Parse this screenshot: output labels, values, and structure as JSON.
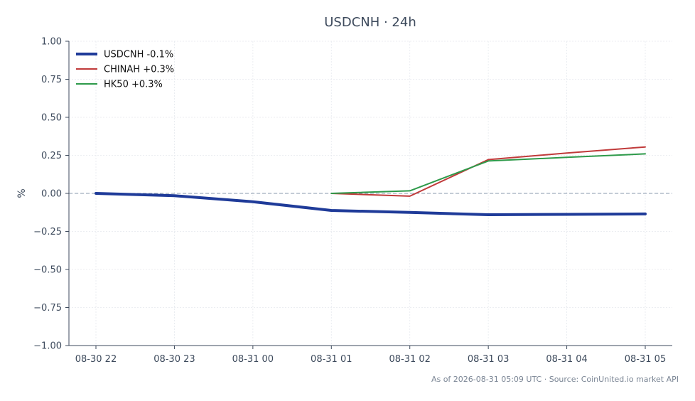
{
  "chart_data": {
    "type": "line",
    "title": "USDCNH · 24h",
    "ylabel": "%",
    "xlabel": "",
    "ylim": [
      -1.0,
      1.0
    ],
    "yticks": [
      1.0,
      0.75,
      0.5,
      0.25,
      0.0,
      -0.25,
      -0.5,
      -0.75,
      -1.0
    ],
    "ytick_labels": [
      "1.00",
      "0.75",
      "0.50",
      "0.25",
      "0.00",
      "−0.25",
      "−0.50",
      "−0.75",
      "−1.00"
    ],
    "x": [
      "08-30 22",
      "08-30 23",
      "08-31 00",
      "08-31 01",
      "08-31 02",
      "08-31 03",
      "08-31 04",
      "08-31 05"
    ],
    "grid": true,
    "zero_line": true,
    "legend_position": "top-left",
    "series": [
      {
        "name": "USDCNH -0.1%",
        "color": "#1f3b99",
        "values": [
          0.0,
          -0.015,
          -0.055,
          -0.112,
          -0.125,
          -0.14,
          -0.138,
          -0.135
        ]
      },
      {
        "name": "CHINAH +0.3%",
        "color": "#c03a3a",
        "values": [
          null,
          null,
          null,
          0.0,
          -0.018,
          0.222,
          0.265,
          0.305
        ]
      },
      {
        "name": "HK50 +0.3%",
        "color": "#2e9a4a",
        "values": [
          null,
          null,
          null,
          0.0,
          0.017,
          0.213,
          0.237,
          0.26
        ]
      }
    ],
    "footer": "As of 2026-08-31 05:09 UTC · Source: CoinUnited.io market API"
  }
}
